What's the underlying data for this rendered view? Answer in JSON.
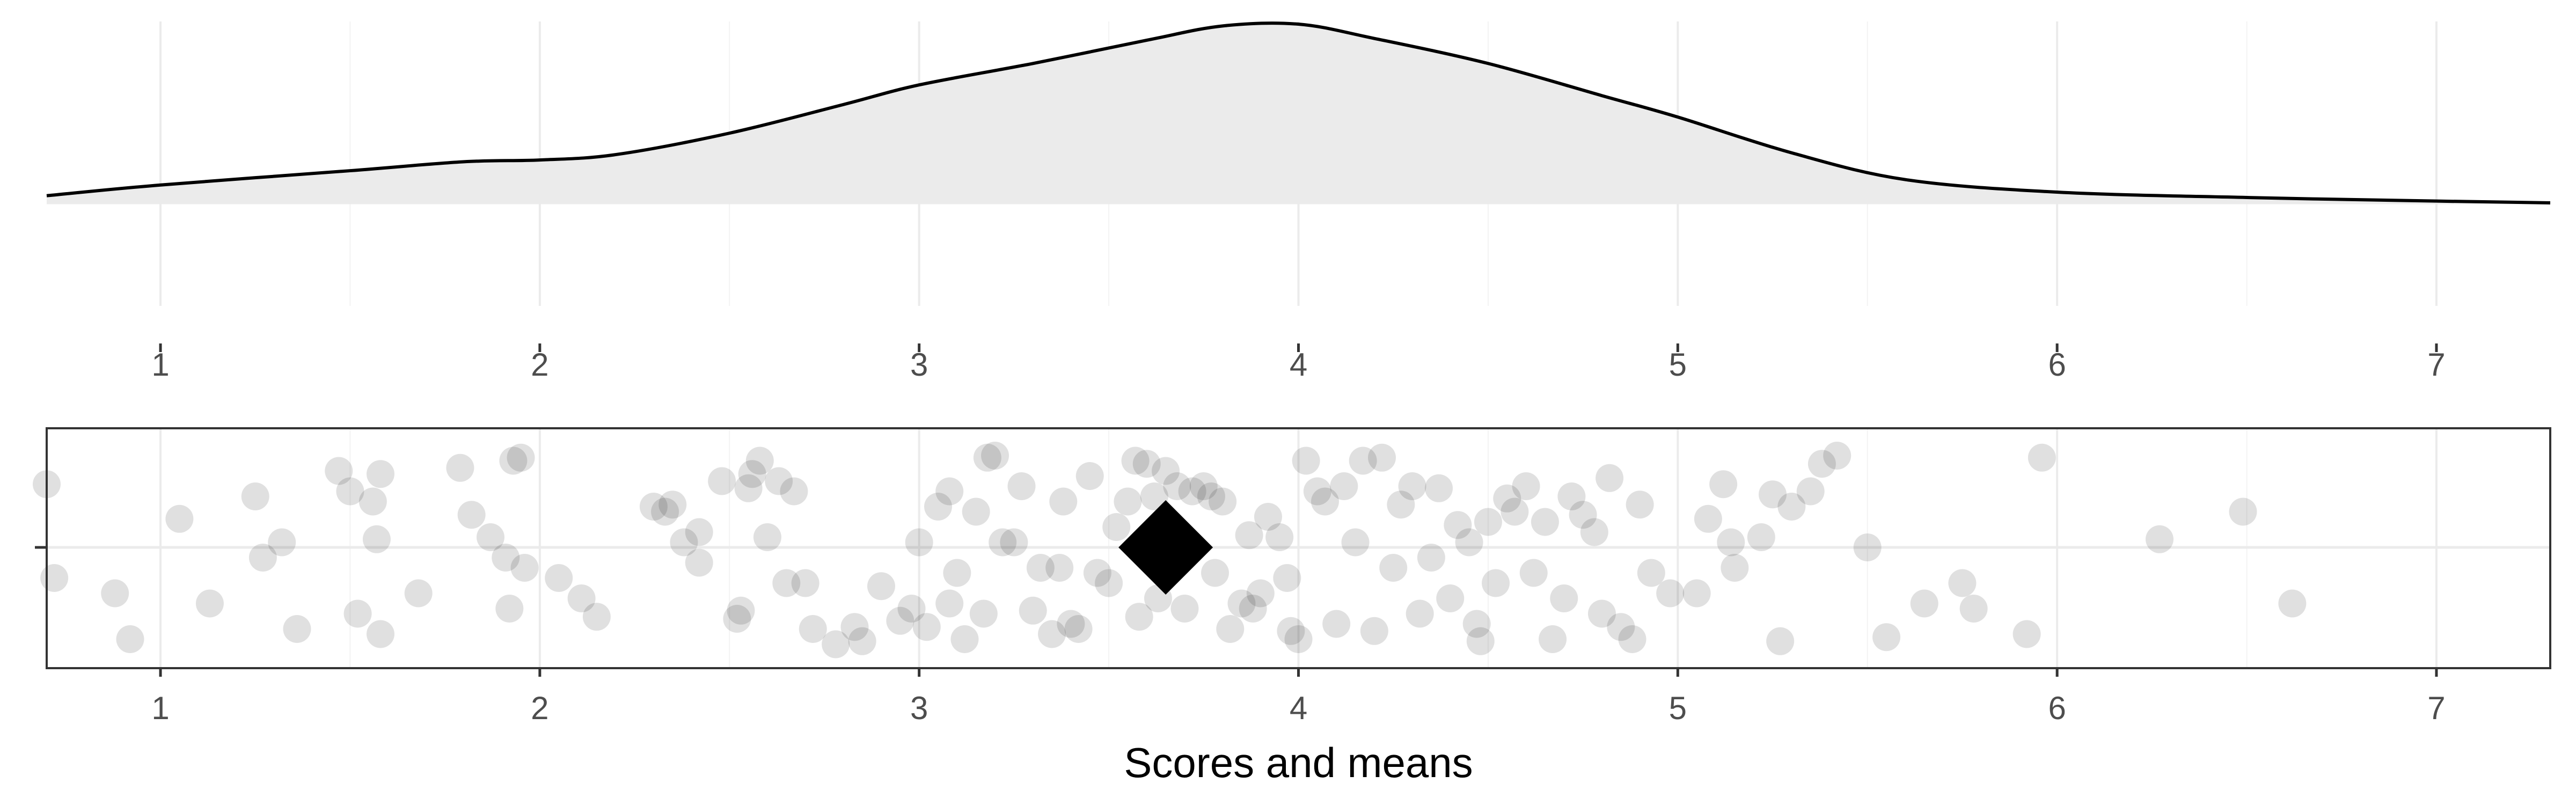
{
  "chart_data": [
    {
      "type": "area",
      "panel": "density",
      "xlim": [
        0.7,
        7.3
      ],
      "x_ticks": [
        1,
        2,
        3,
        4,
        5,
        6,
        7
      ],
      "grid": true,
      "density_curve": [
        [
          0.7,
          0.04
        ],
        [
          1.0,
          0.1
        ],
        [
          1.5,
          0.18
        ],
        [
          1.8,
          0.23
        ],
        [
          2.0,
          0.24
        ],
        [
          2.2,
          0.27
        ],
        [
          2.5,
          0.39
        ],
        [
          2.8,
          0.55
        ],
        [
          3.0,
          0.66
        ],
        [
          3.3,
          0.78
        ],
        [
          3.6,
          0.91
        ],
        [
          3.8,
          0.99
        ],
        [
          4.0,
          1.0
        ],
        [
          4.2,
          0.92
        ],
        [
          4.5,
          0.78
        ],
        [
          4.8,
          0.6
        ],
        [
          5.0,
          0.48
        ],
        [
          5.3,
          0.28
        ],
        [
          5.6,
          0.13
        ],
        [
          6.0,
          0.06
        ],
        [
          6.5,
          0.03
        ],
        [
          7.0,
          0.01
        ],
        [
          7.3,
          0.0
        ]
      ],
      "fill_color": "#ebebeb",
      "line_color": "#000000"
    },
    {
      "type": "scatter",
      "panel": "jitter",
      "xlabel": "Scores and means",
      "xlim": [
        0.7,
        7.3
      ],
      "x_ticks": [
        1,
        2,
        3,
        4,
        5,
        6,
        7
      ],
      "grid": true,
      "point_color": "#000000",
      "point_opacity": 0.12,
      "mean": 3.65,
      "mean_marker": "diamond",
      "points": [
        [
          0.7,
          0.62
        ],
        [
          0.72,
          -0.3
        ],
        [
          0.88,
          -0.45
        ],
        [
          0.92,
          -0.9
        ],
        [
          1.05,
          0.28
        ],
        [
          1.13,
          -0.55
        ],
        [
          1.25,
          0.5
        ],
        [
          1.27,
          -0.1
        ],
        [
          1.32,
          0.05
        ],
        [
          1.36,
          -0.8
        ],
        [
          1.47,
          0.75
        ],
        [
          1.5,
          0.55
        ],
        [
          1.52,
          -0.65
        ],
        [
          1.56,
          0.45
        ],
        [
          1.57,
          0.08
        ],
        [
          1.58,
          0.72
        ],
        [
          1.58,
          -0.85
        ],
        [
          1.68,
          -0.45
        ],
        [
          1.79,
          0.78
        ],
        [
          1.82,
          0.32
        ],
        [
          1.87,
          0.1
        ],
        [
          1.91,
          -0.1
        ],
        [
          1.92,
          -0.6
        ],
        [
          1.93,
          0.85
        ],
        [
          1.95,
          0.88
        ],
        [
          1.96,
          -0.2
        ],
        [
          2.05,
          -0.3
        ],
        [
          2.11,
          -0.5
        ],
        [
          2.15,
          -0.68
        ],
        [
          2.3,
          0.4
        ],
        [
          2.33,
          0.35
        ],
        [
          2.35,
          0.42
        ],
        [
          2.38,
          0.05
        ],
        [
          2.42,
          0.15
        ],
        [
          2.42,
          -0.15
        ],
        [
          2.48,
          0.65
        ],
        [
          2.52,
          -0.7
        ],
        [
          2.53,
          -0.62
        ],
        [
          2.55,
          0.58
        ],
        [
          2.56,
          0.72
        ],
        [
          2.58,
          0.85
        ],
        [
          2.6,
          0.1
        ],
        [
          2.63,
          0.65
        ],
        [
          2.65,
          -0.35
        ],
        [
          2.67,
          0.55
        ],
        [
          2.7,
          -0.35
        ],
        [
          2.72,
          -0.8
        ],
        [
          2.78,
          -0.95
        ],
        [
          2.83,
          -0.78
        ],
        [
          2.85,
          -0.92
        ],
        [
          2.9,
          -0.38
        ],
        [
          2.95,
          -0.72
        ],
        [
          2.98,
          -0.6
        ],
        [
          3.0,
          0.05
        ],
        [
          3.02,
          -0.78
        ],
        [
          3.05,
          0.4
        ],
        [
          3.08,
          0.55
        ],
        [
          3.08,
          -0.55
        ],
        [
          3.1,
          -0.25
        ],
        [
          3.12,
          -0.9
        ],
        [
          3.15,
          0.35
        ],
        [
          3.17,
          -0.65
        ],
        [
          3.18,
          0.88
        ],
        [
          3.2,
          0.9
        ],
        [
          3.22,
          0.05
        ],
        [
          3.25,
          0.05
        ],
        [
          3.27,
          0.6
        ],
        [
          3.3,
          -0.62
        ],
        [
          3.32,
          -0.2
        ],
        [
          3.35,
          -0.85
        ],
        [
          3.37,
          -0.2
        ],
        [
          3.38,
          0.45
        ],
        [
          3.4,
          -0.75
        ],
        [
          3.42,
          -0.8
        ],
        [
          3.45,
          0.7
        ],
        [
          3.47,
          -0.25
        ],
        [
          3.5,
          -0.35
        ],
        [
          3.52,
          0.2
        ],
        [
          3.55,
          0.45
        ],
        [
          3.57,
          0.85
        ],
        [
          3.58,
          -0.68
        ],
        [
          3.6,
          0.82
        ],
        [
          3.62,
          0.5
        ],
        [
          3.63,
          -0.5
        ],
        [
          3.65,
          0.75
        ],
        [
          3.68,
          0.6
        ],
        [
          3.7,
          -0.6
        ],
        [
          3.72,
          0.55
        ],
        [
          3.75,
          0.6
        ],
        [
          3.77,
          0.5
        ],
        [
          3.78,
          -0.25
        ],
        [
          3.8,
          0.45
        ],
        [
          3.82,
          -0.8
        ],
        [
          3.85,
          -0.55
        ],
        [
          3.87,
          0.12
        ],
        [
          3.88,
          -0.6
        ],
        [
          3.9,
          -0.45
        ],
        [
          3.92,
          0.3
        ],
        [
          3.95,
          0.1
        ],
        [
          3.97,
          -0.3
        ],
        [
          3.98,
          -0.82
        ],
        [
          4.0,
          -0.9
        ],
        [
          4.02,
          0.85
        ],
        [
          4.05,
          0.55
        ],
        [
          4.07,
          0.45
        ],
        [
          4.1,
          -0.75
        ],
        [
          4.12,
          0.6
        ],
        [
          4.15,
          0.05
        ],
        [
          4.17,
          0.85
        ],
        [
          4.2,
          -0.82
        ],
        [
          4.22,
          0.88
        ],
        [
          4.25,
          -0.2
        ],
        [
          4.27,
          0.42
        ],
        [
          4.3,
          0.6
        ],
        [
          4.32,
          -0.65
        ],
        [
          4.35,
          -0.1
        ],
        [
          4.37,
          0.58
        ],
        [
          4.4,
          -0.5
        ],
        [
          4.42,
          0.22
        ],
        [
          4.45,
          0.05
        ],
        [
          4.47,
          -0.75
        ],
        [
          4.48,
          -0.92
        ],
        [
          4.5,
          0.25
        ],
        [
          4.52,
          -0.35
        ],
        [
          4.55,
          0.48
        ],
        [
          4.57,
          0.35
        ],
        [
          4.6,
          0.6
        ],
        [
          4.62,
          -0.25
        ],
        [
          4.65,
          0.25
        ],
        [
          4.67,
          -0.9
        ],
        [
          4.7,
          -0.5
        ],
        [
          4.72,
          0.5
        ],
        [
          4.75,
          0.32
        ],
        [
          4.78,
          0.15
        ],
        [
          4.8,
          -0.65
        ],
        [
          4.82,
          0.68
        ],
        [
          4.85,
          -0.78
        ],
        [
          4.88,
          -0.9
        ],
        [
          4.9,
          0.42
        ],
        [
          4.93,
          -0.25
        ],
        [
          4.98,
          -0.45
        ],
        [
          5.05,
          -0.45
        ],
        [
          5.08,
          0.28
        ],
        [
          5.12,
          0.62
        ],
        [
          5.14,
          0.05
        ],
        [
          5.15,
          -0.2
        ],
        [
          5.22,
          0.1
        ],
        [
          5.25,
          0.52
        ],
        [
          5.27,
          -0.92
        ],
        [
          5.3,
          0.4
        ],
        [
          5.35,
          0.55
        ],
        [
          5.38,
          0.82
        ],
        [
          5.42,
          0.9
        ],
        [
          5.5,
          0.0
        ],
        [
          5.55,
          -0.88
        ],
        [
          5.65,
          -0.55
        ],
        [
          5.75,
          -0.35
        ],
        [
          5.78,
          -0.6
        ],
        [
          5.92,
          -0.85
        ],
        [
          5.96,
          0.88
        ],
        [
          6.27,
          0.08
        ],
        [
          6.49,
          0.35
        ],
        [
          6.62,
          -0.55
        ]
      ]
    }
  ]
}
